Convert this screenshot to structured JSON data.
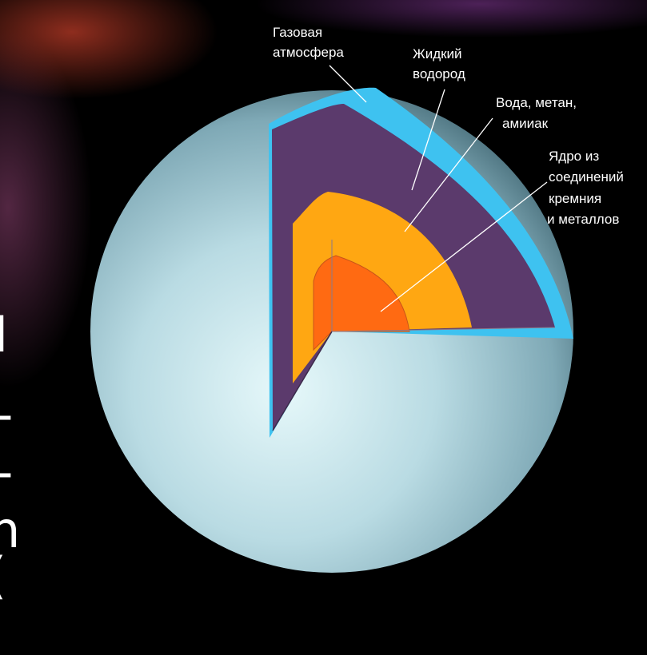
{
  "colors": {
    "atmosphere": "#3ec2f0",
    "liquid_hydrogen": "#5b3a6c",
    "water_layer": "#ffa712",
    "core": "#ff6a12",
    "surface": "#b9dbe3",
    "background": "#000000"
  },
  "labels": {
    "gas_atmosphere": [
      "Газовая",
      "атмосфера"
    ],
    "liquid_hydrogen": [
      "Жидкий",
      "водород"
    ],
    "water_methane_ammonia": [
      "Вода, метан,",
      "амииак"
    ],
    "core": [
      "Ядро из",
      "соединений",
      "кремния",
      "и металлов"
    ]
  },
  "background_text": {
    "fragments": [
      "I",
      "-",
      "-",
      "n",
      "("
    ]
  }
}
